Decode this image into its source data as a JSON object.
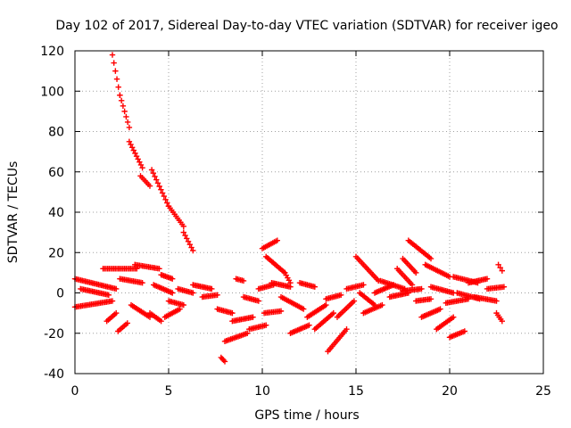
{
  "chart_data": {
    "type": "scatter",
    "title": "Day 102 of 2017, Sidereal Day-to-day VTEC variation (SDTVAR) for receiver igeo",
    "xlabel": "GPS time / hours",
    "ylabel": "SDTVAR / TECUs",
    "xlim": [
      0,
      25
    ],
    "ylim": [
      -40,
      120
    ],
    "xticks": [
      0,
      5,
      10,
      15,
      20,
      25
    ],
    "yticks": [
      -40,
      -20,
      0,
      20,
      40,
      60,
      80,
      100,
      120
    ],
    "grid": true,
    "marker": "plus",
    "color": "#ff0000",
    "segments": [
      {
        "x0": 2.0,
        "y0": 118,
        "x1": 2.4,
        "y1": 98
      },
      {
        "x0": 2.4,
        "y0": 98,
        "x1": 2.9,
        "y1": 82
      },
      {
        "x0": 2.9,
        "y0": 75,
        "x1": 3.6,
        "y1": 62
      },
      {
        "x0": 3.5,
        "y0": 58,
        "x1": 4.0,
        "y1": 53
      },
      {
        "x0": 4.1,
        "y0": 61,
        "x1": 5.0,
        "y1": 43
      },
      {
        "x0": 5.0,
        "y0": 43,
        "x1": 5.8,
        "y1": 33
      },
      {
        "x0": 5.8,
        "y0": 30,
        "x1": 6.3,
        "y1": 21
      },
      {
        "x0": 0.0,
        "y0": 7,
        "x1": 2.2,
        "y1": 2
      },
      {
        "x0": 0.0,
        "y0": -7,
        "x1": 2.0,
        "y1": -4
      },
      {
        "x0": 0.3,
        "y0": 2,
        "x1": 1.8,
        "y1": -1
      },
      {
        "x0": 1.5,
        "y0": 12,
        "x1": 3.3,
        "y1": 12
      },
      {
        "x0": 3.2,
        "y0": 14,
        "x1": 4.5,
        "y1": 12
      },
      {
        "x0": 1.7,
        "y0": -14,
        "x1": 2.2,
        "y1": -10
      },
      {
        "x0": 2.3,
        "y0": -19,
        "x1": 2.8,
        "y1": -15
      },
      {
        "x0": 2.4,
        "y0": 7,
        "x1": 3.6,
        "y1": 5
      },
      {
        "x0": 3.0,
        "y0": -6,
        "x1": 4.0,
        "y1": -12
      },
      {
        "x0": 4.0,
        "y0": -10,
        "x1": 4.6,
        "y1": -14
      },
      {
        "x0": 4.2,
        "y0": 4,
        "x1": 5.2,
        "y1": 0
      },
      {
        "x0": 4.6,
        "y0": 9,
        "x1": 5.2,
        "y1": 7
      },
      {
        "x0": 4.8,
        "y0": -12,
        "x1": 5.6,
        "y1": -8
      },
      {
        "x0": 5.0,
        "y0": -4,
        "x1": 5.8,
        "y1": -6
      },
      {
        "x0": 5.5,
        "y0": 2,
        "x1": 6.3,
        "y1": 0
      },
      {
        "x0": 6.3,
        "y0": 4,
        "x1": 7.3,
        "y1": 2
      },
      {
        "x0": 6.8,
        "y0": -2,
        "x1": 7.6,
        "y1": -1
      },
      {
        "x0": 7.6,
        "y0": -8,
        "x1": 8.4,
        "y1": -10
      },
      {
        "x0": 7.8,
        "y0": -32,
        "x1": 8.0,
        "y1": -34
      },
      {
        "x0": 8.0,
        "y0": -24,
        "x1": 9.2,
        "y1": -20
      },
      {
        "x0": 8.4,
        "y0": -14,
        "x1": 9.5,
        "y1": -12
      },
      {
        "x0": 8.6,
        "y0": 7,
        "x1": 9.0,
        "y1": 6
      },
      {
        "x0": 9.0,
        "y0": -2,
        "x1": 9.8,
        "y1": -4
      },
      {
        "x0": 9.3,
        "y0": -18,
        "x1": 10.2,
        "y1": -16
      },
      {
        "x0": 9.8,
        "y0": 2,
        "x1": 10.6,
        "y1": 4
      },
      {
        "x0": 10.0,
        "y0": 22,
        "x1": 10.8,
        "y1": 26
      },
      {
        "x0": 10.2,
        "y0": 18,
        "x1": 11.2,
        "y1": 10
      },
      {
        "x0": 11.2,
        "y0": 10,
        "x1": 11.5,
        "y1": 5
      },
      {
        "x0": 10.1,
        "y0": -10,
        "x1": 11.0,
        "y1": -9
      },
      {
        "x0": 10.5,
        "y0": 5,
        "x1": 11.5,
        "y1": 3
      },
      {
        "x0": 11.0,
        "y0": -2,
        "x1": 12.2,
        "y1": -8
      },
      {
        "x0": 11.5,
        "y0": -20,
        "x1": 12.5,
        "y1": -16
      },
      {
        "x0": 12.0,
        "y0": 5,
        "x1": 12.8,
        "y1": 3
      },
      {
        "x0": 12.4,
        "y0": -12,
        "x1": 13.4,
        "y1": -6
      },
      {
        "x0": 12.8,
        "y0": -18,
        "x1": 13.8,
        "y1": -10
      },
      {
        "x0": 13.5,
        "y0": -29,
        "x1": 14.5,
        "y1": -18
      },
      {
        "x0": 13.4,
        "y0": -3,
        "x1": 14.2,
        "y1": -1
      },
      {
        "x0": 14.0,
        "y0": -12,
        "x1": 14.9,
        "y1": -4
      },
      {
        "x0": 14.5,
        "y0": 2,
        "x1": 15.4,
        "y1": 4
      },
      {
        "x0": 15.0,
        "y0": 18,
        "x1": 16.2,
        "y1": 6
      },
      {
        "x0": 15.2,
        "y0": 0,
        "x1": 16.0,
        "y1": -6
      },
      {
        "x0": 15.4,
        "y0": -10,
        "x1": 16.4,
        "y1": -6
      },
      {
        "x0": 16.0,
        "y0": 0,
        "x1": 17.0,
        "y1": 4
      },
      {
        "x0": 16.3,
        "y0": 6,
        "x1": 17.6,
        "y1": 2
      },
      {
        "x0": 16.8,
        "y0": -2,
        "x1": 17.8,
        "y1": 0
      },
      {
        "x0": 17.2,
        "y0": 12,
        "x1": 18.0,
        "y1": 4
      },
      {
        "x0": 17.5,
        "y0": 17,
        "x1": 18.2,
        "y1": 10
      },
      {
        "x0": 17.8,
        "y0": 26,
        "x1": 19.0,
        "y1": 17
      },
      {
        "x0": 17.5,
        "y0": 1,
        "x1": 18.5,
        "y1": 2
      },
      {
        "x0": 18.2,
        "y0": -4,
        "x1": 19.0,
        "y1": -3
      },
      {
        "x0": 18.5,
        "y0": -12,
        "x1": 19.5,
        "y1": -8
      },
      {
        "x0": 18.7,
        "y0": 14,
        "x1": 20.0,
        "y1": 8
      },
      {
        "x0": 19.0,
        "y0": 3,
        "x1": 20.2,
        "y1": 0
      },
      {
        "x0": 19.3,
        "y0": -18,
        "x1": 20.2,
        "y1": -12
      },
      {
        "x0": 19.8,
        "y0": -5,
        "x1": 21.0,
        "y1": -3
      },
      {
        "x0": 20.0,
        "y0": -22,
        "x1": 20.8,
        "y1": -19
      },
      {
        "x0": 20.2,
        "y0": 8,
        "x1": 21.5,
        "y1": 5
      },
      {
        "x0": 20.4,
        "y0": 0,
        "x1": 21.6,
        "y1": -3
      },
      {
        "x0": 21.0,
        "y0": 5,
        "x1": 22.0,
        "y1": 7
      },
      {
        "x0": 21.3,
        "y0": -2,
        "x1": 22.5,
        "y1": -4
      },
      {
        "x0": 22.0,
        "y0": 2,
        "x1": 22.9,
        "y1": 3
      },
      {
        "x0": 22.6,
        "y0": 14,
        "x1": 22.8,
        "y1": 11
      },
      {
        "x0": 22.5,
        "y0": -10,
        "x1": 22.8,
        "y1": -14
      }
    ]
  }
}
